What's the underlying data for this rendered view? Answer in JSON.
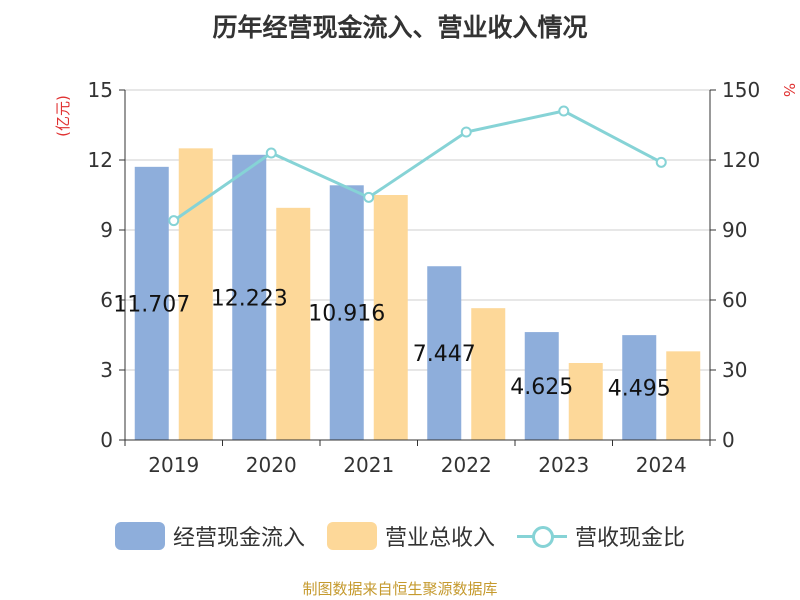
{
  "title": "历年经营现金流入、营业收入情况",
  "source": "制图数据来自恒生聚源数据库",
  "colors": {
    "cash_inflow": "#8eaedb",
    "revenue": "#fdd899",
    "ratio": "#86d3d6",
    "axis_unit": "#e03030",
    "text": "#333333",
    "grid": "#cfcfcf"
  },
  "legend": {
    "cash_inflow": "经营现金流入",
    "revenue": "营业总收入",
    "ratio": "营收现金比"
  },
  "chart_data": {
    "type": "bar",
    "categories": [
      "2019",
      "2020",
      "2021",
      "2022",
      "2023",
      "2024"
    ],
    "series": [
      {
        "name": "经营现金流入",
        "type": "bar",
        "axis": "left",
        "values": [
          11.707,
          12.223,
          10.916,
          7.447,
          4.625,
          4.495
        ],
        "labels": [
          "11.707",
          "12.223",
          "10.916",
          "7.447",
          "4.625",
          "4.495"
        ]
      },
      {
        "name": "营业总收入",
        "type": "bar",
        "axis": "left",
        "values": [
          12.5,
          9.95,
          10.5,
          5.65,
          3.3,
          3.8
        ]
      },
      {
        "name": "营收现金比",
        "type": "line",
        "axis": "right",
        "values": [
          94,
          123,
          104,
          132,
          141,
          119
        ]
      }
    ],
    "y_left": {
      "label": "(亿元)",
      "ylim": [
        0,
        15
      ],
      "ticks": [
        "0",
        "3",
        "6",
        "9",
        "12",
        "15"
      ]
    },
    "y_right": {
      "label": "%",
      "ylim": [
        0,
        150
      ],
      "ticks": [
        "0",
        "30",
        "60",
        "90",
        "120",
        "150"
      ]
    },
    "grid": true,
    "legend_position": "bottom"
  }
}
